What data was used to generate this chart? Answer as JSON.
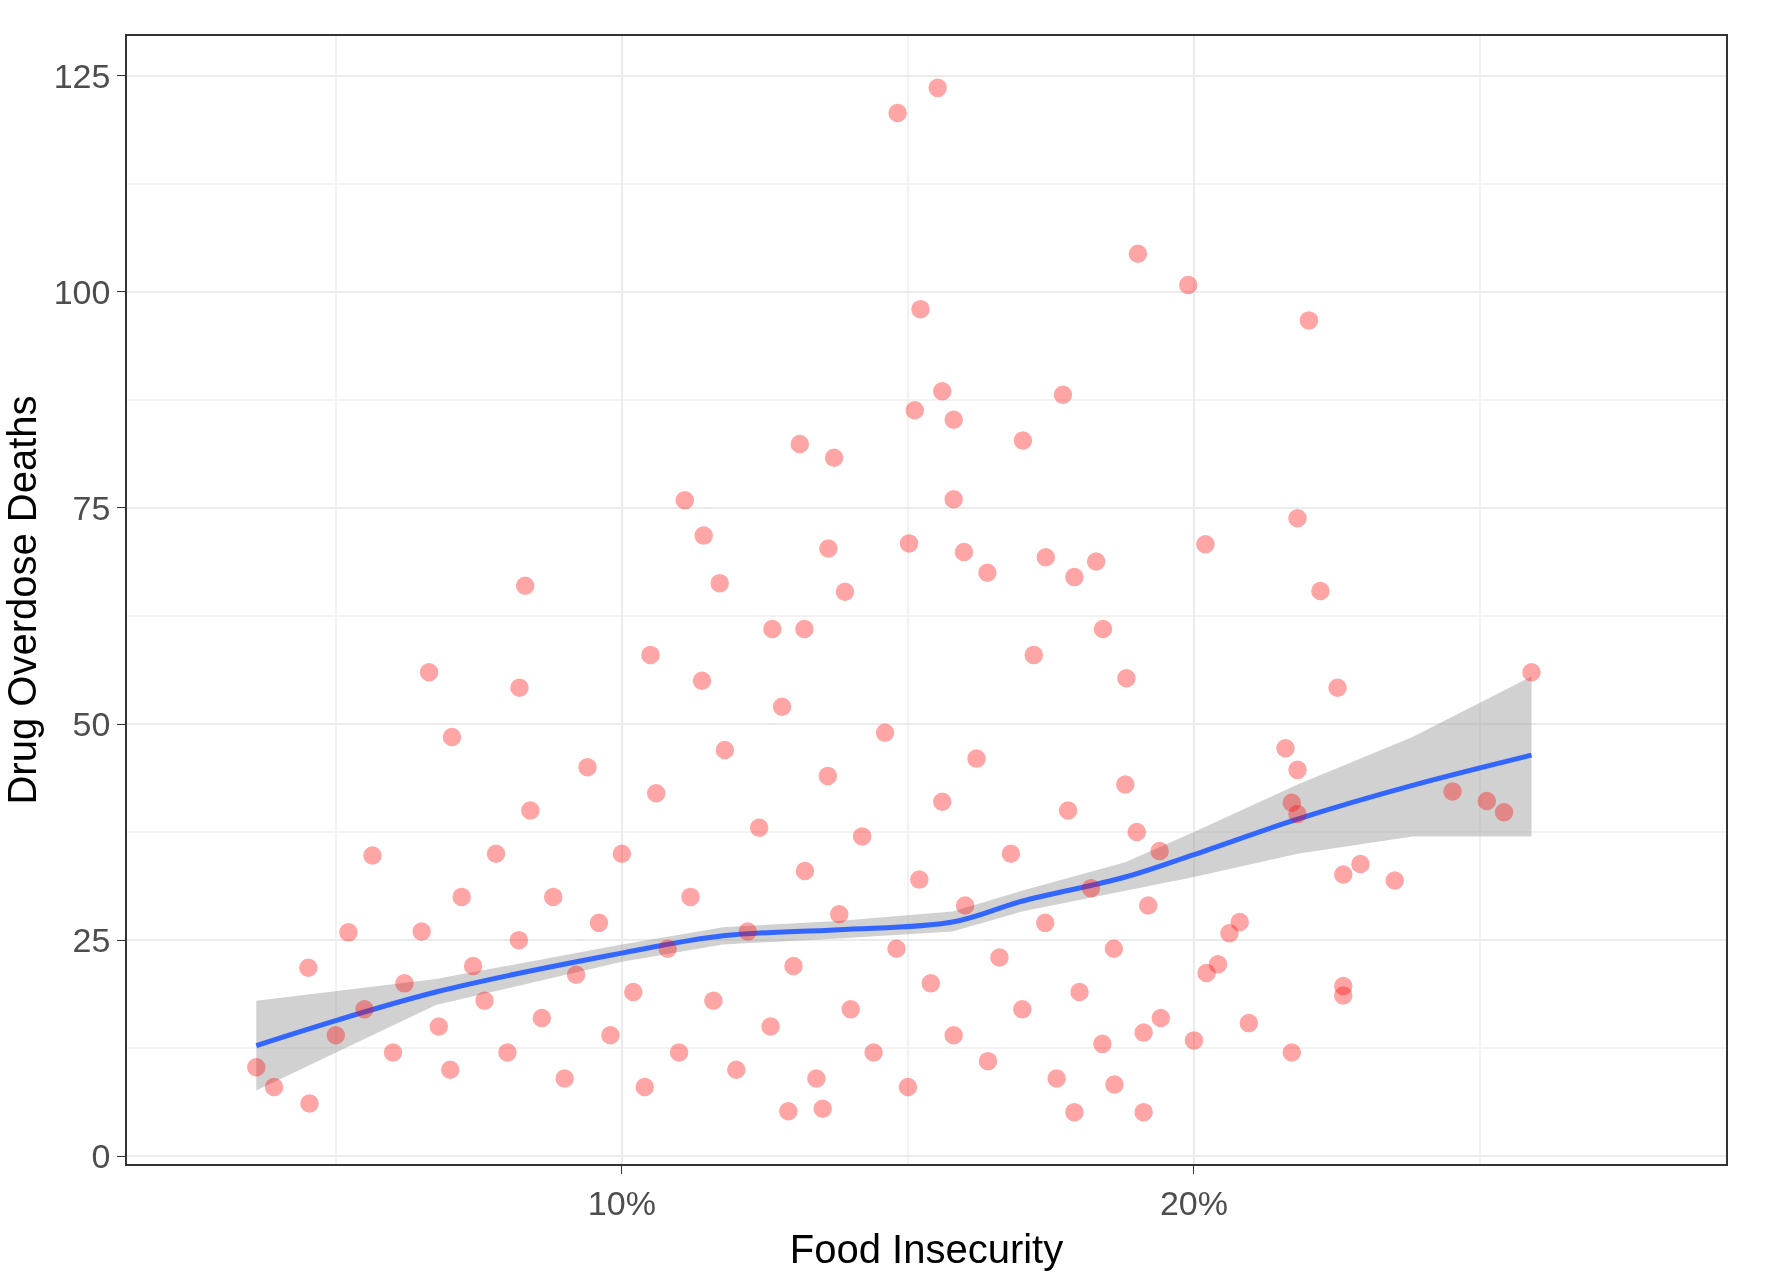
{
  "chart_data": {
    "type": "scatter",
    "xlabel": "Food Insecurity",
    "ylabel": "Drug Overdose Deaths",
    "xlim": [
      1.35,
      29.3
    ],
    "ylim": [
      -0.9,
      129.6
    ],
    "xticks": [
      {
        "value": 5,
        "label": null
      },
      {
        "value": 10,
        "label": "10%"
      },
      {
        "value": 15,
        "label": null
      },
      {
        "value": 20,
        "label": "20%"
      },
      {
        "value": 25,
        "label": null
      }
    ],
    "yticks": [
      0,
      {
        "value": 12.5,
        "label": null
      },
      25,
      {
        "value": 37.5,
        "label": null
      },
      50,
      {
        "value": 62.5,
        "label": null
      },
      75,
      {
        "value": 87.5,
        "label": null
      },
      100,
      {
        "value": 112.5,
        "label": null
      },
      125
    ],
    "grid": true,
    "marker": "circle",
    "series": [
      {
        "color": "#ff0000",
        "x": [
          15.52,
          14.82,
          19.02,
          19.9,
          15.22,
          22.01,
          15.6,
          17.71,
          15.12,
          15.8,
          13.11,
          17.01,
          13.71,
          15.8,
          11.1,
          21.81,
          11.43,
          20.2,
          13.61,
          15.02,
          15.98,
          17.41,
          18.29,
          8.31,
          11.71,
          16.39,
          13.9,
          22.21,
          17.91,
          12.63,
          13.19,
          18.41,
          6.63,
          8.21,
          22.51,
          25.9,
          18.82,
          7.03,
          21.6,
          21.81,
          24.52,
          25.12,
          25.42,
          21.71,
          21.81,
          23.51,
          22.91,
          22.61,
          21.71,
          20.96,
          22.61,
          22.61,
          20.0,
          19.12,
          17.91,
          12.91,
          13.51,
          3.61,
          3.92,
          4.54,
          4.52,
          5.64,
          5.22,
          20.62,
          20.8,
          20.42,
          20.22,
          19.4,
          19.0,
          19.42,
          19.12,
          18.61,
          5.0,
          5.5,
          6.0,
          6.2,
          6.5,
          6.8,
          7.0,
          7.2,
          7.4,
          7.6,
          7.8,
          8.0,
          8.2,
          8.4,
          8.6,
          8.8,
          9.0,
          9.2,
          9.4,
          9.6,
          9.8,
          10.0,
          10.2,
          10.4,
          10.6,
          10.8,
          11.0,
          11.2,
          11.4,
          11.6,
          11.8,
          12.0,
          12.2,
          12.4,
          12.6,
          12.8,
          13.0,
          13.2,
          13.4,
          13.6,
          13.8,
          14.0,
          14.2,
          14.4,
          14.6,
          14.8,
          15.0,
          15.2,
          15.4,
          15.6,
          15.8,
          16.0,
          16.2,
          16.4,
          16.6,
          16.8,
          17.0,
          17.2,
          17.4,
          17.6,
          17.8,
          18.0,
          18.2,
          18.4,
          18.6,
          18.8,
          19.2,
          10.5
        ],
        "values": [
          123.6,
          120.7,
          104.4,
          100.8,
          98.0,
          96.7,
          88.5,
          88.1,
          86.3,
          85.2,
          82.4,
          82.8,
          80.8,
          76.0,
          75.9,
          73.8,
          71.8,
          70.8,
          70.3,
          70.9,
          69.9,
          69.3,
          68.8,
          66.0,
          66.3,
          67.5,
          65.3,
          65.4,
          67.0,
          61.0,
          61.0,
          61.0,
          56.0,
          54.2,
          54.2,
          56.0,
          55.3,
          48.5,
          47.2,
          44.7,
          42.2,
          41.1,
          39.8,
          40.9,
          39.6,
          31.9,
          33.8,
          32.6,
          12.0,
          15.4,
          19.7,
          18.6,
          13.4,
          5.1,
          5.1,
          5.2,
          5.5,
          10.3,
          8.0,
          6.1,
          21.8,
          34.8,
          25.9,
          25.8,
          27.1,
          22.2,
          21.2,
          35.3,
          37.5,
          16.0,
          14.3,
          8.3,
          14,
          17,
          12,
          20,
          26,
          15,
          10,
          30,
          22,
          18,
          35,
          12,
          25,
          40,
          16,
          30,
          9,
          21,
          45,
          27,
          14,
          35,
          19,
          8,
          42,
          24,
          12,
          30,
          55,
          18,
          47,
          10,
          26,
          38,
          15,
          52,
          22,
          33,
          9,
          44,
          28,
          17,
          37,
          12,
          49,
          24,
          8,
          32,
          20,
          41,
          14,
          29,
          46,
          11,
          23,
          35,
          17,
          58,
          27,
          9,
          40,
          19,
          31,
          13,
          24,
          43,
          29,
          58
        ]
      },
      {
        "type": "line",
        "marker": "none",
        "color": "#3366ff",
        "x": [
          3.61,
          6.75,
          10,
          11.77,
          13.78,
          15.78,
          16.99,
          18.8,
          20.0,
          21.81,
          23.82,
          25.9
        ],
        "values": [
          12.8,
          19.0,
          23.5,
          25.5,
          26.2,
          27.1,
          29.5,
          32.3,
          34.9,
          39.0,
          42.9,
          46.4
        ],
        "lower": [
          7.6,
          17.5,
          22.5,
          24.5,
          25.2,
          26.0,
          28.3,
          30.7,
          32.3,
          35.0,
          37.0,
          37.0
        ],
        "upper": [
          18.0,
          20.5,
          24.5,
          26.5,
          27.2,
          28.3,
          30.7,
          34.0,
          37.5,
          43.0,
          48.5,
          55.5
        ]
      }
    ]
  }
}
